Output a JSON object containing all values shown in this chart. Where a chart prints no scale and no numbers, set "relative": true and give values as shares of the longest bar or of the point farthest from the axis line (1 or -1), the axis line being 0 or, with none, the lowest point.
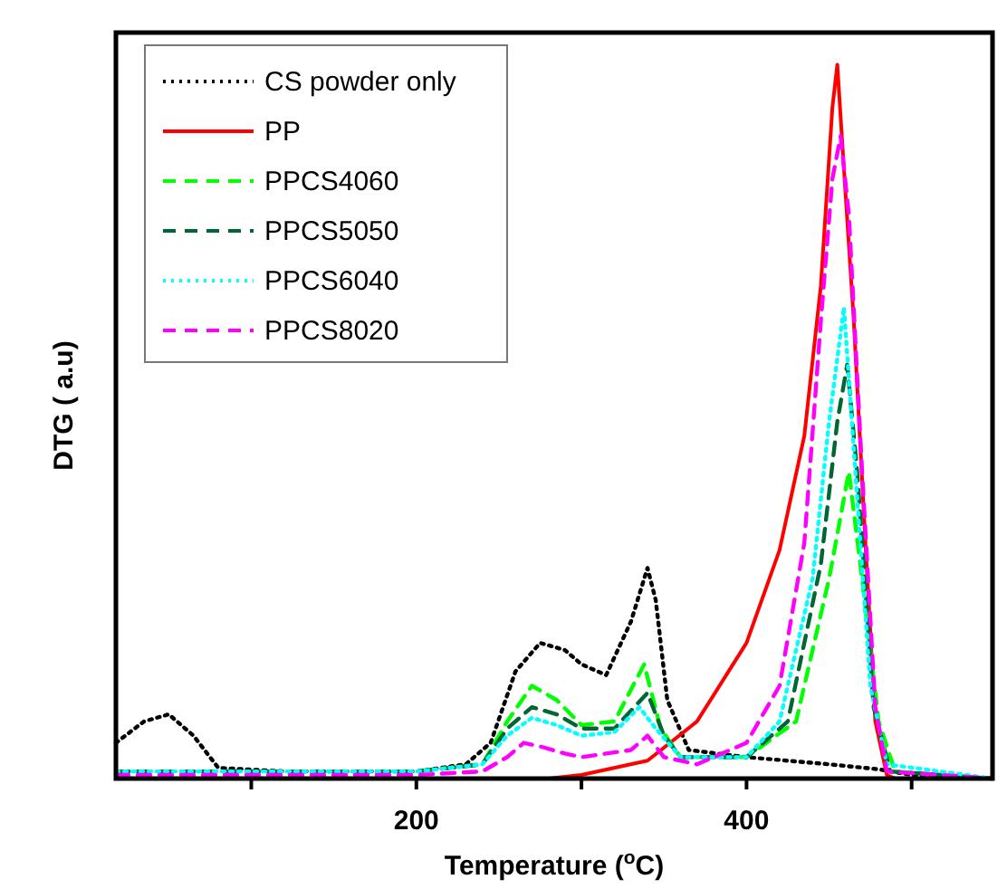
{
  "chart_data": {
    "type": "line",
    "relative": true,
    "xlabel": "Temperature ($^{o}$C)",
    "ylabel": "DTG ( a.u)",
    "xlim": [
      18,
      549
    ],
    "xticks": [
      {
        "value": 100,
        "label": null
      },
      200,
      {
        "value": 300,
        "label": null
      },
      400,
      {
        "value": 500,
        "label": null
      }
    ],
    "legend": "top left",
    "marker": "none",
    "series": [
      {
        "name": "CS powder only",
        "color": "#000000",
        "line_style": "dotted",
        "x": [
          18,
          35,
          50,
          65,
          80,
          120,
          200,
          230,
          245,
          260,
          275,
          290,
          300,
          315,
          330,
          340,
          345,
          352,
          365,
          400,
          450,
          480,
          500,
          549
        ],
        "values": [
          0.05,
          0.08,
          0.09,
          0.06,
          0.015,
          0.01,
          0.01,
          0.02,
          0.05,
          0.15,
          0.19,
          0.18,
          0.16,
          0.145,
          0.22,
          0.295,
          0.25,
          0.11,
          0.04,
          0.03,
          0.02,
          0.013,
          0.005,
          0
        ]
      },
      {
        "name": "PP",
        "color": "#ff0000",
        "line_style": "solid",
        "x": [
          18,
          280,
          300,
          340,
          370,
          400,
          420,
          435,
          445,
          452,
          455,
          458,
          465,
          472,
          478,
          485,
          490,
          549
        ],
        "values": [
          0,
          0,
          0.005,
          0.025,
          0.08,
          0.19,
          0.32,
          0.48,
          0.69,
          0.94,
          1.0,
          0.89,
          0.64,
          0.33,
          0.08,
          0.005,
          0,
          0
        ]
      },
      {
        "name": "PPCS4060",
        "color": "#00ff00",
        "line_style": "dashed",
        "x": [
          18,
          200,
          240,
          255,
          270,
          285,
          300,
          320,
          338,
          348,
          360,
          400,
          430,
          450,
          462,
          470,
          480,
          490,
          549
        ],
        "values": [
          0.01,
          0.01,
          0.02,
          0.08,
          0.13,
          0.11,
          0.075,
          0.08,
          0.16,
          0.07,
          0.03,
          0.03,
          0.08,
          0.28,
          0.43,
          0.28,
          0.08,
          0.01,
          0
        ]
      },
      {
        "name": "PPCS5050",
        "color": "#006633",
        "line_style": "dashed",
        "x": [
          18,
          200,
          240,
          255,
          270,
          285,
          300,
          320,
          340,
          350,
          360,
          400,
          425,
          445,
          455,
          461,
          467,
          477,
          487,
          549
        ],
        "values": [
          0.01,
          0.01,
          0.02,
          0.07,
          0.1,
          0.09,
          0.07,
          0.07,
          0.12,
          0.06,
          0.03,
          0.03,
          0.08,
          0.3,
          0.5,
          0.58,
          0.43,
          0.1,
          0.01,
          0
        ]
      },
      {
        "name": "PPCS6040",
        "color": "#00ffff",
        "line_style": "dotted",
        "x": [
          18,
          200,
          240,
          255,
          270,
          285,
          300,
          320,
          335,
          345,
          360,
          400,
          420,
          440,
          450,
          459,
          465,
          475,
          485,
          549
        ],
        "values": [
          0.01,
          0.01,
          0.02,
          0.06,
          0.085,
          0.075,
          0.06,
          0.065,
          0.1,
          0.07,
          0.03,
          0.03,
          0.08,
          0.28,
          0.5,
          0.66,
          0.46,
          0.13,
          0.02,
          0
        ]
      },
      {
        "name": "PPCS8020",
        "color": "#ff00ff",
        "line_style": "dashed",
        "x": [
          18,
          200,
          240,
          255,
          265,
          275,
          290,
          300,
          315,
          330,
          340,
          350,
          370,
          400,
          420,
          435,
          445,
          452,
          457,
          462,
          470,
          478,
          485,
          549
        ],
        "values": [
          0.005,
          0.005,
          0.01,
          0.03,
          0.05,
          0.045,
          0.035,
          0.03,
          0.035,
          0.04,
          0.06,
          0.03,
          0.02,
          0.05,
          0.13,
          0.33,
          0.64,
          0.84,
          0.9,
          0.79,
          0.43,
          0.1,
          0.01,
          0
        ]
      }
    ]
  }
}
